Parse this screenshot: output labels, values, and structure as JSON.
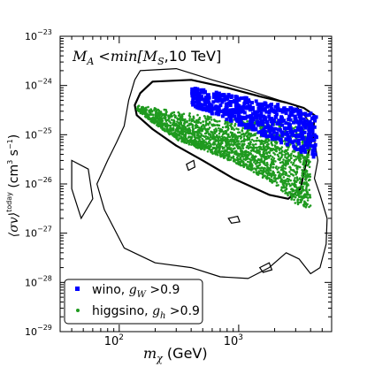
{
  "chart_data": {
    "type": "scatter",
    "title": "",
    "annotation": {
      "prefix": "M",
      "prefix_sub": "A",
      "middle": " <min[M",
      "middle_sub": "S",
      "suffix": ",10 TeV]"
    },
    "xlabel": {
      "symbol": "m",
      "sub": "χ",
      "unit": " (GeV)"
    },
    "ylabel": {
      "open": "⟨σv⟩",
      "sup": "today",
      "unit_open": " (cm",
      "unit_mid": " s",
      "unit_close": ")",
      "exp3": "3",
      "expm1": "−1"
    },
    "x_scale": "log",
    "y_scale": "log",
    "xlim": [
      32,
      6000
    ],
    "ylim": [
      1e-29,
      1e-23
    ],
    "x_ticks": [
      {
        "value": 100,
        "mantissa": "10",
        "exp": "2"
      },
      {
        "value": 1000,
        "mantissa": "10",
        "exp": "3"
      }
    ],
    "y_ticks": [
      {
        "value": 1e-29,
        "mantissa": "10",
        "exp": "−29"
      },
      {
        "value": 1e-28,
        "mantissa": "10",
        "exp": "−28"
      },
      {
        "value": 1e-27,
        "mantissa": "10",
        "exp": "−27"
      },
      {
        "value": 1e-26,
        "mantissa": "10",
        "exp": "−26"
      },
      {
        "value": 1e-25,
        "mantissa": "10",
        "exp": "−25"
      },
      {
        "value": 1e-24,
        "mantissa": "10",
        "exp": "−24"
      },
      {
        "value": 1e-23,
        "mantissa": "10",
        "exp": "−23"
      }
    ],
    "legend_position": "bottom-left",
    "series": [
      {
        "key": "wino",
        "label": "wino, ",
        "cond_symbol": "g",
        "cond_sub": "W",
        "cond_rest": " >0.9",
        "color": "#0000ff",
        "marker": "square",
        "region": {
          "upper": [
            [
              400,
              9e-25
            ],
            [
              1000,
              6e-25
            ],
            [
              3000,
              3.5e-25
            ],
            [
              4500,
              2.5e-25
            ]
          ],
          "lower": [
            [
              400,
              4e-25
            ],
            [
              1000,
              1.6e-25
            ],
            [
              3000,
              5e-26
            ],
            [
              4500,
              3e-26
            ]
          ]
        }
      },
      {
        "key": "higgsino",
        "label": "higgsino, ",
        "cond_symbol": "g",
        "cond_sub": "h",
        "cond_rest": " >0.9",
        "color": "#1f9a1f",
        "marker": "dot",
        "region": {
          "upper": [
            [
              140,
              4e-25
            ],
            [
              300,
              3e-25
            ],
            [
              1000,
              2e-25
            ],
            [
              3000,
              2.2e-25
            ],
            [
              4500,
              2e-25
            ]
          ],
          "lower": [
            [
              140,
              3e-25
            ],
            [
              300,
              8e-26
            ],
            [
              1000,
              2.5e-26
            ],
            [
              2000,
              1e-26
            ],
            [
              3000,
              4e-27
            ],
            [
              4000,
              3e-27
            ]
          ]
        }
      }
    ],
    "contours": [
      {
        "name": "thick",
        "width": 2.2,
        "points": [
          [
            190,
            1.2e-24
          ],
          [
            400,
            1.3e-24
          ],
          [
            800,
            9e-25
          ],
          [
            1500,
            6e-25
          ],
          [
            2500,
            4.5e-25
          ],
          [
            3500,
            3.5e-25
          ],
          [
            4300,
            2.5e-25
          ],
          [
            4200,
            1e-25
          ],
          [
            3700,
            3e-26
          ],
          [
            3300,
            8e-27
          ],
          [
            2600,
            5e-27
          ],
          [
            1800,
            6e-27
          ],
          [
            900,
            1.3e-26
          ],
          [
            500,
            3e-26
          ],
          [
            300,
            6e-26
          ],
          [
            190,
            1.3e-25
          ],
          [
            140,
            2.5e-25
          ],
          [
            135,
            4e-25
          ],
          [
            150,
            7e-25
          ],
          [
            190,
            1.2e-24
          ]
        ]
      },
      {
        "name": "thin",
        "width": 1.2,
        "points": [
          [
            150,
            2e-24
          ],
          [
            300,
            2.2e-24
          ],
          [
            600,
            1.3e-24
          ],
          [
            1200,
            8e-25
          ],
          [
            2200,
            5e-25
          ],
          [
            3000,
            4e-25
          ],
          [
            3800,
            2e-25
          ],
          [
            4300,
            8e-26
          ],
          [
            4600,
            3e-26
          ],
          [
            4300,
            1.3e-26
          ],
          [
            4800,
            6e-27
          ],
          [
            5500,
            2e-27
          ],
          [
            5400,
            6e-28
          ],
          [
            4800,
            2e-28
          ],
          [
            4000,
            1.5e-28
          ],
          [
            3200,
            3e-28
          ],
          [
            2500,
            4e-28
          ],
          [
            1800,
            2e-28
          ],
          [
            1200,
            1.2e-28
          ],
          [
            700,
            1.3e-28
          ],
          [
            400,
            2e-28
          ],
          [
            200,
            2.5e-28
          ],
          [
            110,
            5e-28
          ],
          [
            75,
            3e-27
          ],
          [
            65,
            1e-26
          ],
          [
            80,
            3e-26
          ],
          [
            95,
            7e-26
          ],
          [
            110,
            1.5e-25
          ],
          [
            120,
            5e-25
          ],
          [
            135,
            1.3e-24
          ],
          [
            150,
            2e-24
          ]
        ]
      }
    ],
    "islands": [
      {
        "points": [
          [
            365,
            2.5e-26
          ],
          [
            420,
            3e-26
          ],
          [
            430,
            2.2e-26
          ],
          [
            380,
            1.9e-26
          ],
          [
            365,
            2.5e-26
          ]
        ]
      },
      {
        "points": [
          [
            820,
            2e-27
          ],
          [
            980,
            2.2e-27
          ],
          [
            1020,
            1.7e-27
          ],
          [
            870,
            1.6e-27
          ],
          [
            820,
            2e-27
          ]
        ]
      },
      {
        "points": [
          [
            1500,
            2e-28
          ],
          [
            1800,
            2.5e-28
          ],
          [
            1900,
            1.8e-28
          ],
          [
            1600,
            1.6e-28
          ],
          [
            1500,
            2e-28
          ]
        ]
      },
      {
        "points": [
          [
            40,
            3e-26
          ],
          [
            55,
            2e-26
          ],
          [
            60,
            5e-27
          ],
          [
            48,
            2e-27
          ],
          [
            40,
            8e-27
          ],
          [
            40,
            3e-26
          ]
        ]
      }
    ]
  }
}
